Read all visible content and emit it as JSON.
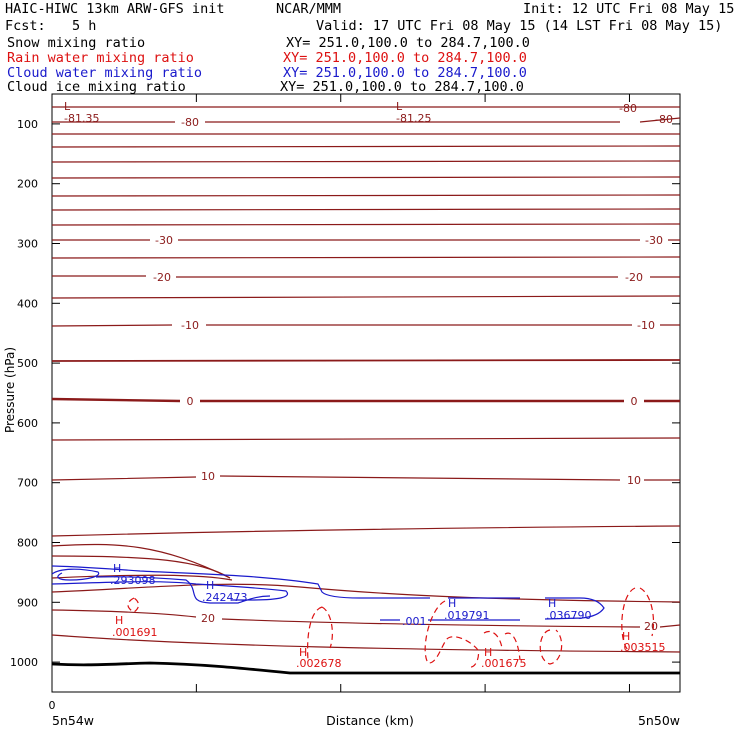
{
  "header": {
    "left_title": "HAIC-HIWC 13km ARW-GFS init",
    "center_title": "NCAR/MMM",
    "init": "Init: 12 UTC Fri 08 May 15",
    "fcst_label": "Fcst:",
    "fcst_value": "5 h",
    "valid": "Valid: 17 UTC Fri 08 May 15 (14 LST Fri 08 May 15)"
  },
  "fields": [
    {
      "name": "Snow mixing ratio",
      "xy": "XY= 251.0,100.0 to 284.7,100.0",
      "color": "#000000"
    },
    {
      "name": "Rain water mixing ratio",
      "xy": "XY= 251.0,100.0 to 284.7,100.0",
      "color": "#dd1111"
    },
    {
      "name": "Cloud water mixing ratio",
      "xy": "XY= 251.0,100.0 to 284.7,100.0",
      "color": "#1a1acc"
    },
    {
      "name": "Cloud ice mixing ratio",
      "xy": "XY= 251.0,100.0 to 284.7,100.0",
      "color": "#000000"
    }
  ],
  "chart_data": {
    "type": "contour",
    "xlabel": "Distance (km)",
    "ylabel": "Pressure (hPa)",
    "x_first_tick": "0",
    "x_left_endpoint": "5n54w",
    "x_right_endpoint": "5n50w",
    "y_range": [
      50,
      1050
    ],
    "y_ticks": [
      100,
      200,
      300,
      400,
      500,
      600,
      700,
      800,
      900,
      1000
    ],
    "temperature_labels": [
      "-81.35",
      "-80",
      "-81.25",
      "-80",
      "-80",
      "-30",
      "-30",
      "-20",
      "-20",
      "-10",
      "-10",
      "0",
      "0",
      "10",
      "10",
      "20",
      "20"
    ],
    "extrema_labels": [
      {
        "mark": "L",
        "value": "-81.35",
        "color": "#990000"
      },
      {
        "mark": "L",
        "value": "-81.25",
        "color": "#990000"
      },
      {
        "mark": "H",
        "value": ".293098",
        "color": "#1a1acc"
      },
      {
        "mark": "H",
        "value": ".242473",
        "color": "#1a1acc"
      },
      {
        "mark": "H",
        "value": ".019791",
        "color": "#1a1acc"
      },
      {
        "mark": "H",
        "value": ".036790",
        "color": "#1a1acc"
      },
      {
        "mark": "H",
        "value": ".001691",
        "color": "#dd1111"
      },
      {
        "mark": "H",
        "value": ".002678",
        "color": "#dd1111"
      },
      {
        "mark": "H",
        "value": ".001675",
        "color": "#dd1111"
      },
      {
        "mark": "H",
        "value": ".003515",
        "color": "#dd1111"
      }
    ],
    "cloud_water_contour_label": ".001",
    "colors": {
      "temperature": "#8b1a1a",
      "rain": "#dd1111",
      "cloud_water": "#1a1acc",
      "terrain": "#000000"
    }
  }
}
